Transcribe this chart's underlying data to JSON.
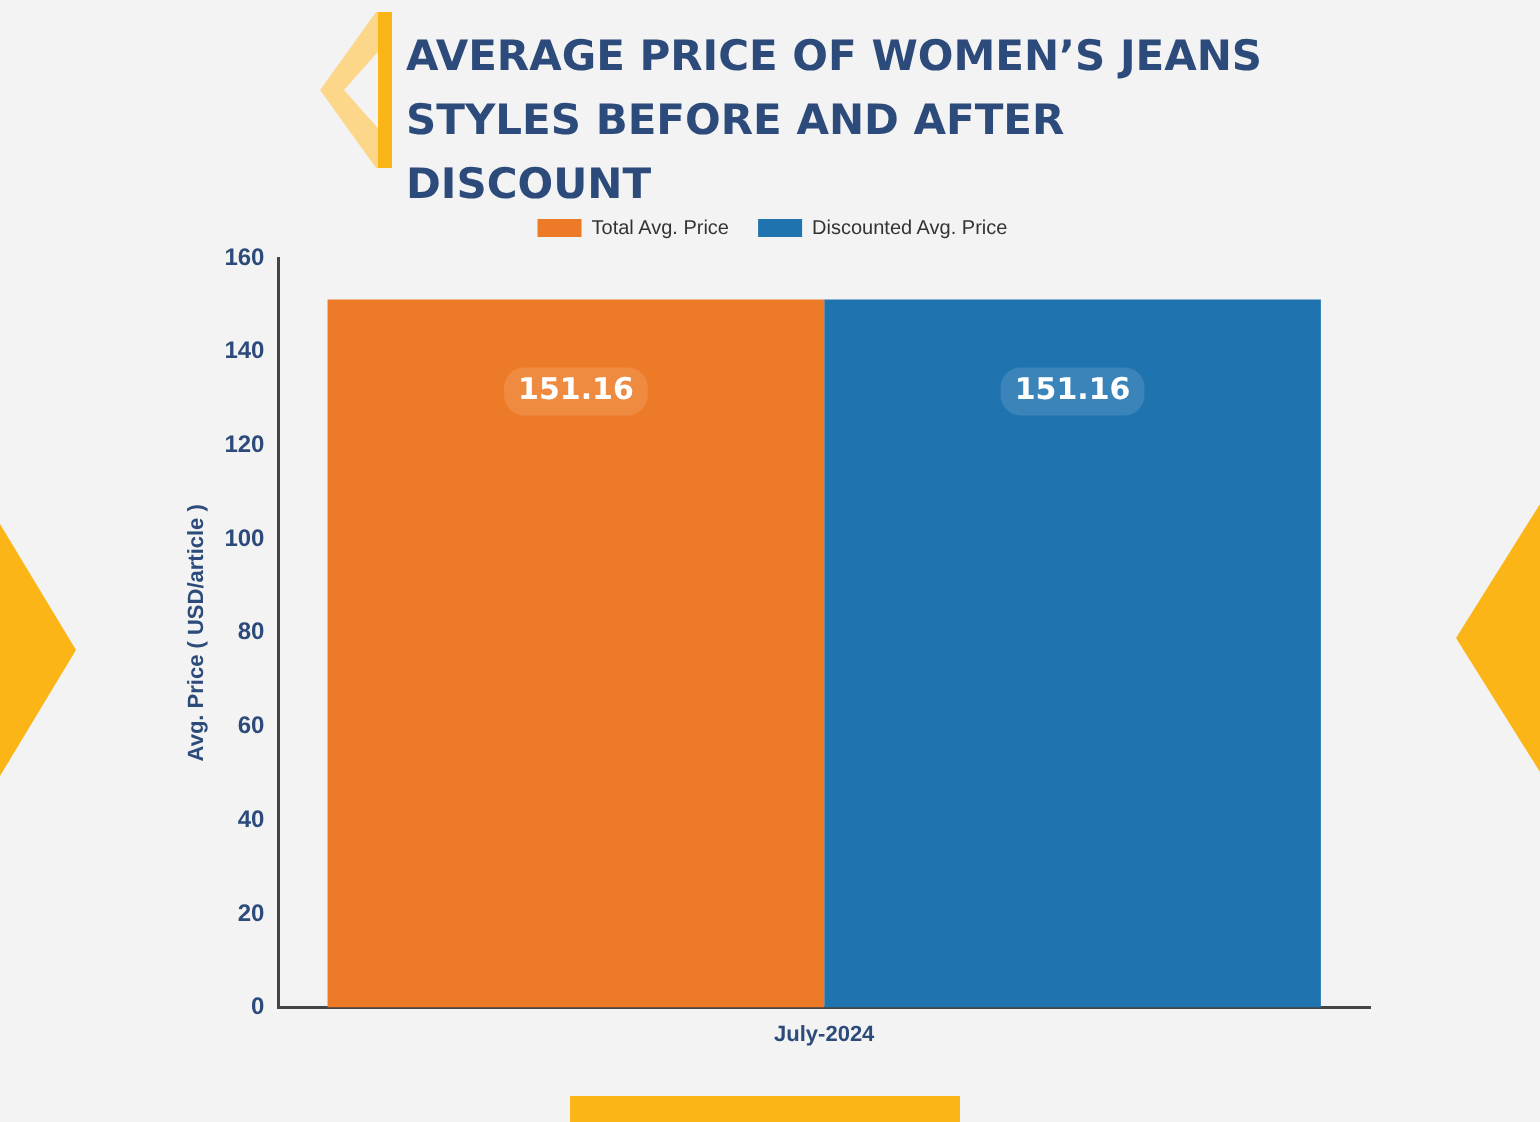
{
  "chart_data": {
    "type": "bar",
    "title": "AVERAGE PRICE OF WOMEN’S JEANS STYLES BEFORE AND AFTER DISCOUNT",
    "ylabel": "Avg. Price ( USD/article )",
    "categories": [
      "July-2024"
    ],
    "series": [
      {
        "name": "Total Avg. Price",
        "color": "#ed7a27",
        "values": [
          151.16
        ]
      },
      {
        "name": "Discounted Avg. Price",
        "color": "#1f74b0",
        "values": [
          151.16
        ]
      }
    ],
    "ylim": [
      0,
      160
    ],
    "yticks": [
      0,
      20,
      40,
      60,
      80,
      100,
      120,
      140,
      160
    ],
    "data_labels": true,
    "legend": "top",
    "grid": false
  }
}
